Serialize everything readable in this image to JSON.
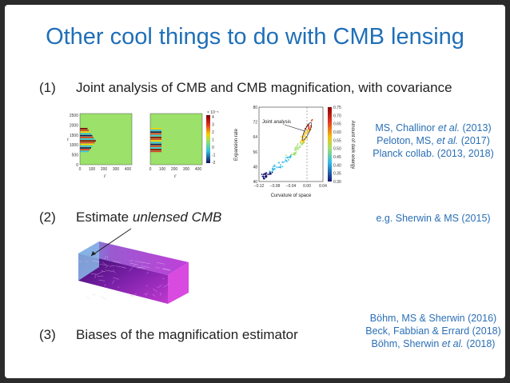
{
  "slide": {
    "title": "Other cool things to do with CMB lensing",
    "items": [
      {
        "number": "(1)",
        "text": "Joint analysis of CMB and CMB magnification, with covariance"
      },
      {
        "number": "(2)",
        "text_plain": "Estimate ",
        "text_italic": "unlensed CMB"
      },
      {
        "number": "(3)",
        "text": "Biases of the magnification estimator"
      }
    ],
    "refs1": {
      "line1_pre": "MS, Challinor ",
      "line1_em": "et al.",
      "line1_post": " (2013)",
      "line2_pre": "Peloton, MS, ",
      "line2_em": "et al.",
      "line2_post": " (2017)",
      "line3": "Planck collab. (2013, 2018)"
    },
    "refs2": {
      "line1": "e.g. Sherwin & MS (2015)"
    },
    "refs3": {
      "line1": "Böhm, MS & Sherwin (2016)",
      "line2": "Beck, Fabbian & Errard (2018)",
      "line3_pre": "Böhm, Sherwin ",
      "line3_em": "et al.",
      "line3_post": " (2018)"
    }
  },
  "heatmaps": {
    "ylabel": "ℓ",
    "xlabel": "ℓ'",
    "y_ticks": [
      "2500",
      "2000",
      "1500",
      "1000",
      "500",
      "0"
    ],
    "x_ticks": [
      "0",
      "100",
      "200",
      "300",
      "400"
    ],
    "colorbar_ticks": [
      "4",
      "3",
      "2",
      "1",
      "0",
      "-1",
      "-2"
    ],
    "colorbar_exp": "× 10⁻⁵"
  },
  "chart_data": {
    "type": "scatter",
    "xlabel": "Curvature of space",
    "ylabel": "Expansion rate",
    "colorbar_label": "Amount of dark energy",
    "annotation": "Joint analysis",
    "x_ticks": [
      "−0.12",
      "−0.08",
      "−0.04",
      "0.00",
      "0.04"
    ],
    "y_ticks": [
      "80",
      "72",
      "64",
      "56",
      "48",
      "40"
    ],
    "xlim": [
      -0.12,
      0.04
    ],
    "ylim": [
      40,
      80
    ],
    "colorbar_ticks": [
      "0.75",
      "0.70",
      "0.65",
      "0.60",
      "0.55",
      "0.50",
      "0.45",
      "0.40",
      "0.35",
      "0.30"
    ],
    "colorbar_range": [
      0.3,
      0.75
    ],
    "trend": {
      "x": [
        -0.115,
        -0.09,
        -0.06,
        -0.03,
        -0.01,
        0.0,
        0.01
      ],
      "y": [
        42,
        45,
        50,
        56,
        62,
        67,
        72
      ]
    },
    "joint_contour_center": {
      "x": 0.0,
      "y": 67
    },
    "vertical_dashed_x": 0.0
  },
  "colors": {
    "title": "#1f6fb8",
    "refs": "#2a6fb5",
    "heatmap_bg": "#9be16a"
  }
}
